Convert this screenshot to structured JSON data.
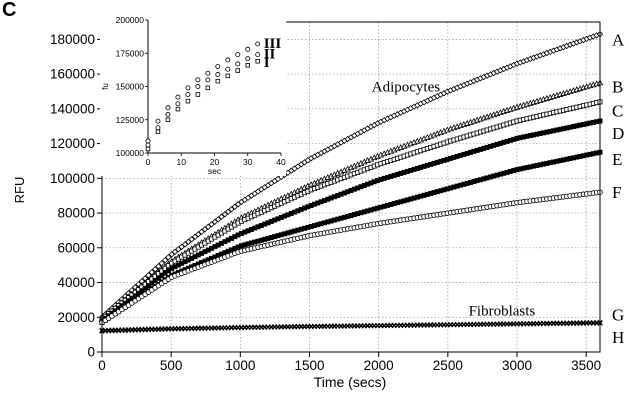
{
  "panel_label": "C",
  "chart_data": [
    {
      "type": "scatter",
      "title": "",
      "xlabel": "Time (secs)",
      "ylabel": "RFU",
      "xlim": [
        0,
        3600
      ],
      "ylim": [
        0,
        190000
      ],
      "x_ticks": [
        0,
        500,
        1000,
        1500,
        2000,
        2500,
        3000,
        3500
      ],
      "y_ticks": [
        0,
        20000,
        40000,
        60000,
        80000,
        100000,
        120000,
        140000,
        160000,
        180000
      ],
      "x_tick_labels": [
        "0",
        "500",
        "1000",
        "1500",
        "2000",
        "2500",
        "3000",
        "3500"
      ],
      "y_tick_labels": [
        "0",
        "20000",
        "40000",
        "60000",
        "80000",
        "100000",
        "120000",
        "140000",
        "160000",
        "180000"
      ],
      "grid": true,
      "annotations": [
        {
          "text": "Adipocytes",
          "x": 1950,
          "y": 150000
        },
        {
          "text": "Fibroblasts",
          "x": 2650,
          "y": 21000
        }
      ],
      "series": [
        {
          "name": "A",
          "marker": "diamond",
          "x": [
            0,
            500,
            1000,
            1500,
            2000,
            2500,
            3000,
            3600
          ],
          "values": [
            20000,
            56000,
            86000,
            111000,
            132000,
            150000,
            166000,
            183000
          ]
        },
        {
          "name": "B",
          "marker": "triangle",
          "x": [
            0,
            500,
            1000,
            1500,
            2000,
            2500,
            3000,
            3600
          ],
          "values": [
            19000,
            52000,
            77000,
            96000,
            113000,
            128000,
            141000,
            155000
          ]
        },
        {
          "name": "C",
          "marker": "square-open",
          "x": [
            0,
            500,
            1000,
            1500,
            2000,
            2500,
            3000,
            3600
          ],
          "values": [
            19000,
            51000,
            75000,
            93000,
            108000,
            121000,
            133000,
            144000
          ]
        },
        {
          "name": "D",
          "marker": "square-filled",
          "x": [
            0,
            500,
            1000,
            1500,
            2000,
            2500,
            3000,
            3600
          ],
          "values": [
            18000,
            48000,
            68000,
            84000,
            99000,
            111000,
            123000,
            133000
          ]
        },
        {
          "name": "E",
          "marker": "square-filled",
          "x": [
            0,
            500,
            1000,
            1500,
            2000,
            2500,
            3000,
            3600
          ],
          "values": [
            17000,
            44000,
            61000,
            72000,
            83000,
            94000,
            105000,
            115000
          ]
        },
        {
          "name": "F",
          "marker": "circle-open",
          "x": [
            0,
            500,
            1000,
            1500,
            2000,
            2500,
            3000,
            3600
          ],
          "values": [
            17000,
            43000,
            58000,
            67000,
            74000,
            80000,
            86000,
            92000
          ]
        },
        {
          "name": "G",
          "marker": "cross",
          "x": [
            0,
            500,
            1000,
            1500,
            2000,
            2500,
            3000,
            3600
          ],
          "values": [
            12500,
            13500,
            14200,
            14800,
            15300,
            15800,
            16300,
            17000
          ]
        },
        {
          "name": "H",
          "marker": "cross",
          "x": [
            0,
            500,
            1000,
            1500,
            2000,
            2500,
            3000,
            3600
          ],
          "values": [
            12000,
            13200,
            14000,
            14600,
            15100,
            15600,
            16100,
            16600
          ]
        }
      ]
    },
    {
      "type": "scatter",
      "title": "",
      "xlabel": "sec",
      "ylabel": "fu",
      "xlim": [
        0,
        40
      ],
      "ylim": [
        100000,
        200000
      ],
      "x_ticks": [
        0,
        10,
        20,
        30,
        40
      ],
      "y_ticks": [
        100000,
        125000,
        150000,
        175000,
        200000
      ],
      "x_tick_labels": [
        "0",
        "10",
        "20",
        "30",
        "40"
      ],
      "y_tick_labels": [
        "100000",
        "125000",
        "150000",
        "175000",
        "200000"
      ],
      "grid": false,
      "series": [
        {
          "name": "III",
          "marker": "circle-open",
          "x": [
            0,
            3,
            6,
            9,
            12,
            15,
            18,
            21,
            24,
            27,
            30,
            33
          ],
          "values": [
            109000,
            124000,
            134000,
            142000,
            149000,
            155000,
            160000,
            165000,
            170000,
            174000,
            178000,
            182000
          ]
        },
        {
          "name": "II",
          "marker": "circle-open",
          "x": [
            0,
            3,
            6,
            9,
            12,
            15,
            18,
            21,
            24,
            27,
            30,
            33
          ],
          "values": [
            106000,
            119000,
            129000,
            137000,
            144000,
            150000,
            155000,
            159000,
            163000,
            167000,
            171000,
            174000
          ]
        },
        {
          "name": "I",
          "marker": "square-open",
          "x": [
            0,
            3,
            6,
            9,
            12,
            15,
            18,
            21,
            24,
            27,
            30,
            33
          ],
          "values": [
            103000,
            116000,
            125000,
            133000,
            139000,
            144000,
            149000,
            154000,
            158000,
            162000,
            166000,
            169000
          ]
        }
      ]
    }
  ]
}
